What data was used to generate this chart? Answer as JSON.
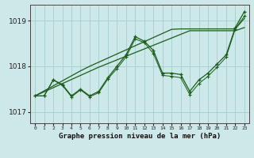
{
  "title": "Graphe pression niveau de la mer (hPa)",
  "background_color": "#cce8e8",
  "grid_color": "#aad0d0",
  "line_color": "#1a5c1a",
  "x_labels": [
    "0",
    "1",
    "2",
    "3",
    "4",
    "5",
    "6",
    "7",
    "8",
    "9",
    "10",
    "11",
    "12",
    "13",
    "14",
    "15",
    "16",
    "17",
    "18",
    "19",
    "20",
    "21",
    "22",
    "23"
  ],
  "ylim": [
    1016.75,
    1019.35
  ],
  "yticks": [
    1017,
    1018,
    1019
  ],
  "series_main": [
    1017.35,
    1017.35,
    1017.7,
    1017.6,
    1017.35,
    1017.5,
    1017.35,
    1017.45,
    1017.75,
    1018.0,
    1018.25,
    1018.65,
    1018.55,
    1018.35,
    1017.85,
    1017.85,
    1017.82,
    1017.45,
    1017.7,
    1017.85,
    1018.05,
    1018.25,
    1018.85,
    1019.2
  ],
  "series_second": [
    1017.35,
    1017.35,
    1017.7,
    1017.58,
    1017.33,
    1017.48,
    1017.33,
    1017.42,
    1017.72,
    1017.95,
    1018.2,
    1018.6,
    1018.52,
    1018.28,
    1017.8,
    1017.78,
    1017.75,
    1017.38,
    1017.62,
    1017.78,
    1017.98,
    1018.2,
    1018.82,
    1019.1
  ],
  "series_trend1": [
    1017.35,
    1017.46,
    1017.57,
    1017.68,
    1017.79,
    1017.9,
    1018.0,
    1018.09,
    1018.18,
    1018.27,
    1018.36,
    1018.45,
    1018.54,
    1018.63,
    1018.72,
    1018.81,
    1018.82,
    1018.82,
    1018.82,
    1018.82,
    1018.82,
    1018.82,
    1018.82,
    1019.05
  ],
  "series_trend2": [
    1017.35,
    1017.44,
    1017.53,
    1017.62,
    1017.71,
    1017.8,
    1017.89,
    1017.98,
    1018.06,
    1018.14,
    1018.22,
    1018.3,
    1018.38,
    1018.46,
    1018.54,
    1018.62,
    1018.7,
    1018.78,
    1018.78,
    1018.78,
    1018.78,
    1018.78,
    1018.78,
    1018.85
  ]
}
